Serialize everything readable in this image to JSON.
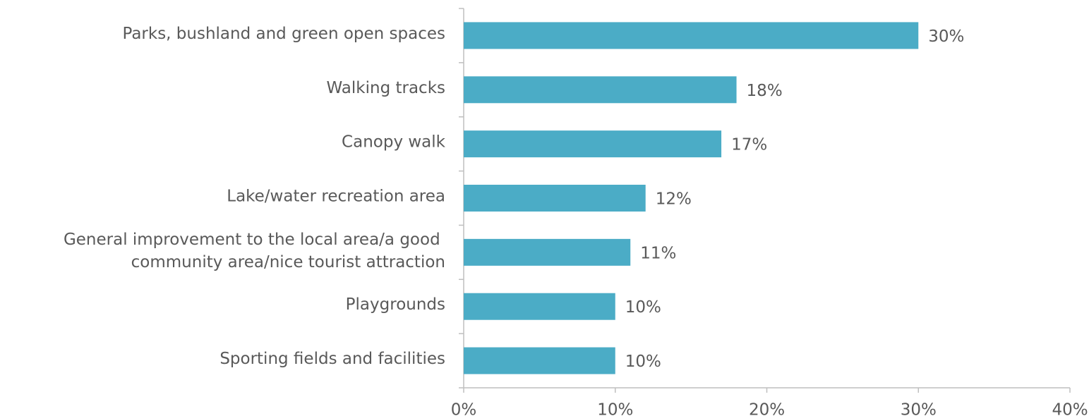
{
  "chart_data": {
    "type": "bar",
    "orientation": "horizontal",
    "categories": [
      "Parks, bushland and green open spaces",
      "Walking tracks",
      "Canopy walk",
      "Lake/water recreation area",
      "General improvement to the local area/a good community area/nice tourist attraction",
      "Playgrounds",
      "Sporting fields and facilities"
    ],
    "values": [
      30,
      18,
      17,
      12,
      11,
      10,
      10
    ],
    "value_labels": [
      "30%",
      "18%",
      "17%",
      "12%",
      "11%",
      "10%",
      "10%"
    ],
    "color": "#4bacc6",
    "xlim": [
      0,
      40
    ],
    "xticks": [
      {
        "value": 0,
        "label": "0%"
      },
      {
        "value": 10,
        "label": "10%"
      },
      {
        "value": 20,
        "label": "20%"
      },
      {
        "value": 30,
        "label": "30%"
      },
      {
        "value": 40,
        "label": "40%"
      }
    ],
    "grid": false
  }
}
